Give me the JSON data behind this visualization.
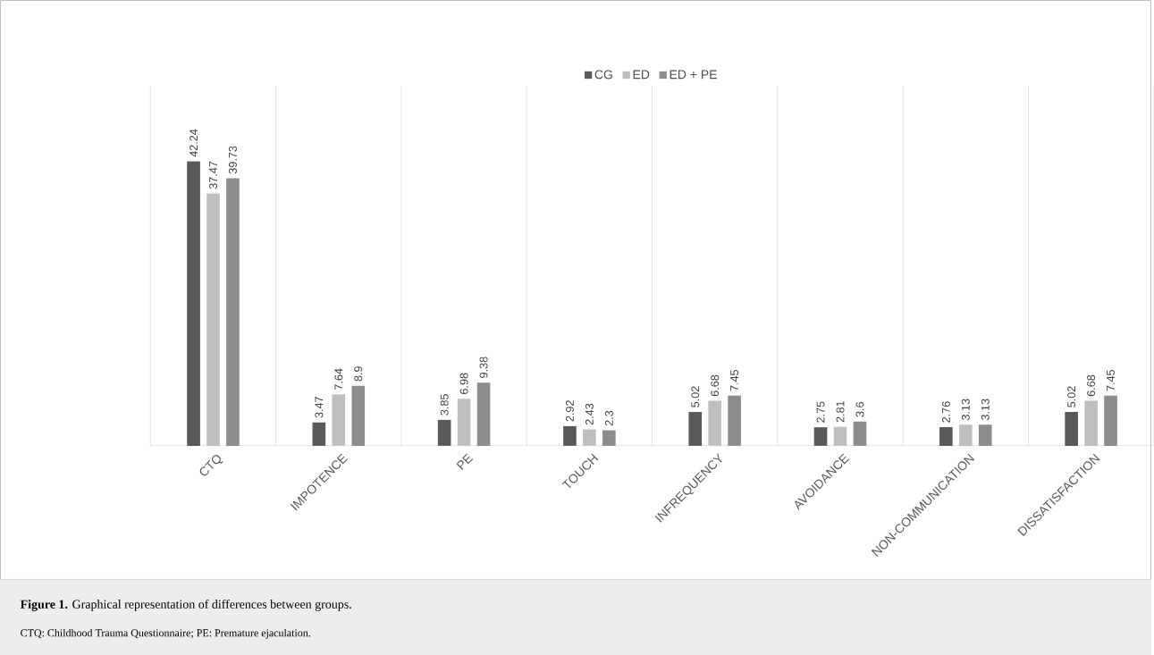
{
  "chart_data": {
    "type": "bar",
    "title": "**Figure 1.** Graphical representation of differences between groups.",
    "annotations": [
      "CTQ: Childhood Trauma Questionnaire; PE: Premature ejaculation."
    ],
    "categories": [
      "CTQ",
      "IMPOTENCE",
      "PE",
      "TOUCH",
      "INFREQUENCY",
      "AVOIDANCE",
      "NON-COMMUNICATION",
      "DISSATISFACTION"
    ],
    "series": [
      {
        "name": "CG",
        "color": "#595959",
        "values": [
          42.24,
          3.47,
          3.85,
          2.92,
          5.02,
          2.75,
          2.76,
          5.02
        ]
      },
      {
        "name": "ED",
        "color": "#bfbfbf",
        "values": [
          37.47,
          7.64,
          6.98,
          2.43,
          6.68,
          2.81,
          3.13,
          6.68
        ]
      },
      {
        "name": "ED + PE",
        "color": "#8c8c8c",
        "values": [
          39.73,
          8.9,
          9.38,
          2.3,
          7.45,
          3.6,
          3.13,
          7.45
        ]
      }
    ],
    "data_labels": true,
    "legend": "top",
    "grid": "x"
  }
}
